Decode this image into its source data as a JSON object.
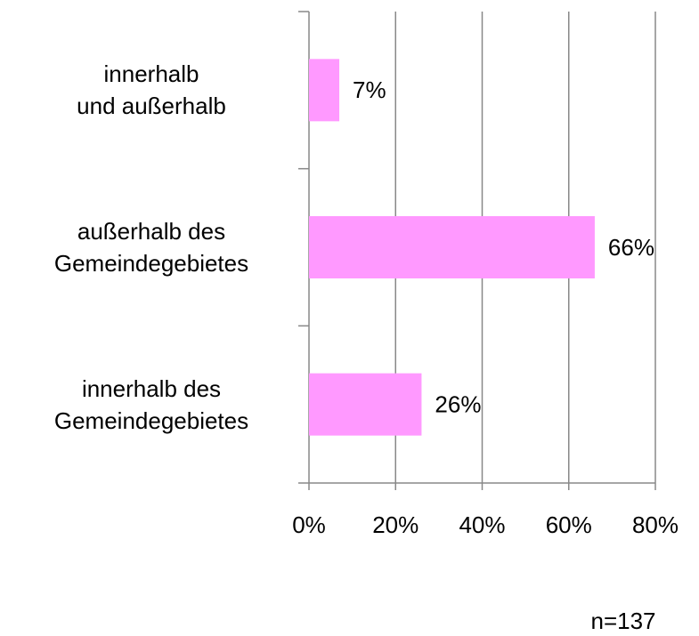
{
  "chart_data": {
    "type": "barh",
    "categories": [
      "innerhalb\nund außerhalb",
      "außerhalb des\nGemeindegebietes",
      "innerhalb des\nGemeindegebietes"
    ],
    "values": [
      7,
      66,
      26
    ],
    "value_labels": [
      "7%",
      "66%",
      "26%"
    ],
    "color": "#ff99ff",
    "xlim": [
      0,
      80
    ],
    "xticks": [
      {
        "value": 0,
        "label": "0%"
      },
      {
        "value": 20,
        "label": "20%"
      },
      {
        "value": 40,
        "label": "40%"
      },
      {
        "value": 60,
        "label": "60%"
      },
      {
        "value": 80,
        "label": "80%"
      }
    ],
    "grid": true,
    "annotation": "n=137"
  }
}
